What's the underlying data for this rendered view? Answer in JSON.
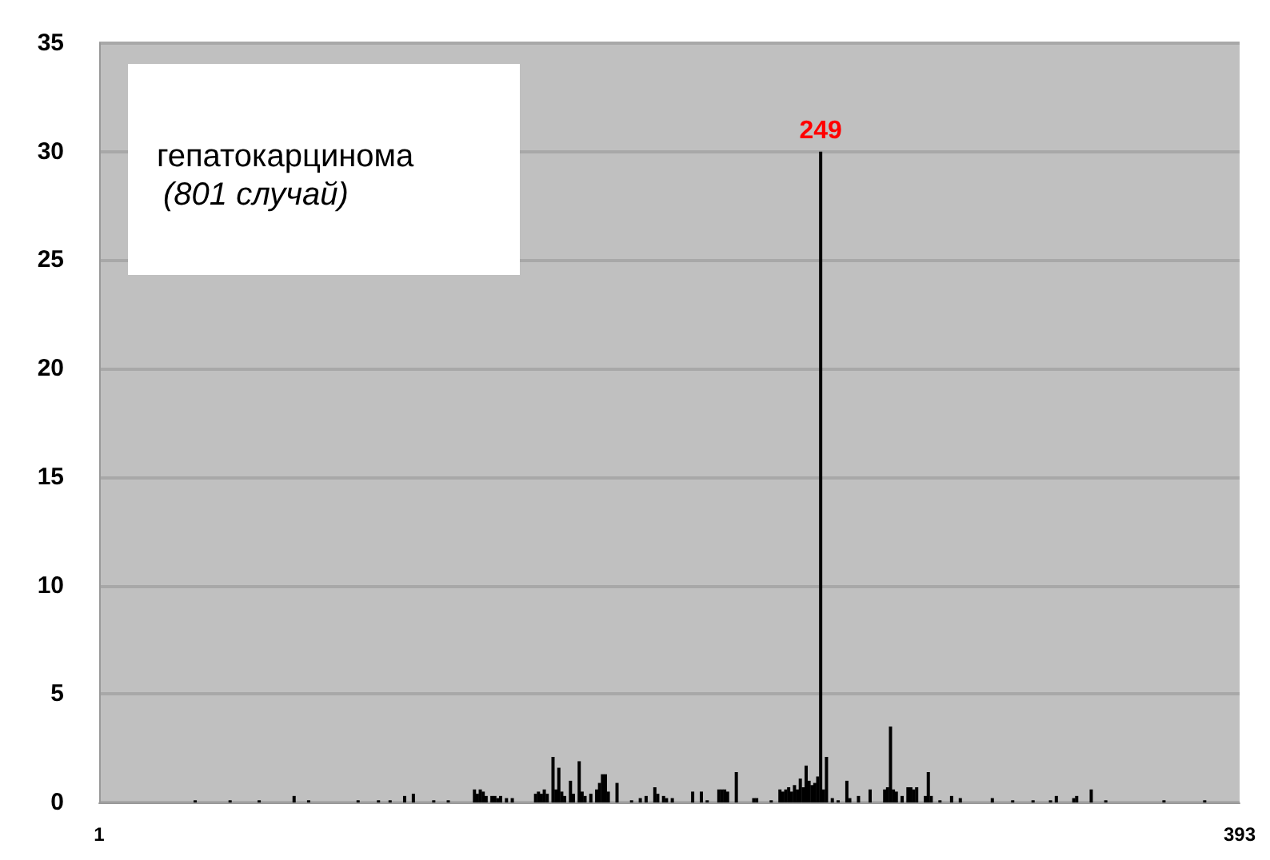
{
  "chart_data": {
    "type": "bar",
    "title": "гепатокарцинома",
    "subtitle": "(801 случай)",
    "x": [
      34,
      46,
      56,
      68,
      73,
      90,
      97,
      101,
      106,
      109,
      116,
      121,
      130,
      131,
      132,
      133,
      134,
      136,
      137,
      138,
      139,
      141,
      143,
      151,
      152,
      153,
      154,
      155,
      157,
      158,
      159,
      160,
      161,
      163,
      164,
      166,
      167,
      168,
      170,
      172,
      173,
      174,
      175,
      176,
      179,
      184,
      187,
      189,
      192,
      193,
      195,
      196,
      198,
      205,
      208,
      210,
      214,
      215,
      216,
      217,
      220,
      226,
      227,
      232,
      235,
      236,
      237,
      238,
      239,
      240,
      241,
      242,
      243,
      244,
      245,
      246,
      247,
      248,
      249,
      250,
      251,
      253,
      255,
      258,
      259,
      262,
      266,
      271,
      272,
      273,
      274,
      275,
      277,
      279,
      280,
      281,
      282,
      285,
      286,
      287,
      290,
      294,
      297,
      308,
      315,
      322,
      328,
      330,
      336,
      337,
      342,
      347,
      367,
      381
    ],
    "values": [
      0.1,
      0.1,
      0.1,
      0.3,
      0.1,
      0.1,
      0.1,
      0.1,
      0.3,
      0.4,
      0.1,
      0.1,
      0.6,
      0.4,
      0.6,
      0.5,
      0.3,
      0.3,
      0.3,
      0.2,
      0.3,
      0.2,
      0.2,
      0.4,
      0.5,
      0.4,
      0.6,
      0.4,
      2.1,
      0.6,
      1.6,
      0.5,
      0.3,
      1.0,
      0.4,
      1.9,
      0.5,
      0.3,
      0.4,
      0.6,
      0.9,
      1.3,
      1.3,
      0.5,
      0.9,
      0.1,
      0.2,
      0.3,
      0.7,
      0.4,
      0.3,
      0.2,
      0.2,
      0.5,
      0.5,
      0.1,
      0.6,
      0.6,
      0.6,
      0.5,
      1.4,
      0.2,
      0.2,
      0.1,
      0.6,
      0.5,
      0.6,
      0.7,
      0.5,
      0.8,
      0.6,
      1.1,
      0.7,
      1.7,
      1.0,
      0.8,
      0.9,
      1.2,
      30,
      0.6,
      2.1,
      0.2,
      0.1,
      1.0,
      0.2,
      0.3,
      0.6,
      0.6,
      0.7,
      3.5,
      0.6,
      0.5,
      0.3,
      0.7,
      0.7,
      0.6,
      0.7,
      0.3,
      1.4,
      0.3,
      0.1,
      0.3,
      0.2,
      0.2,
      0.1,
      0.1,
      0.1,
      0.3,
      0.2,
      0.3,
      0.6,
      0.1,
      0.1,
      0.1
    ],
    "color": "#000000",
    "annotations": [
      {
        "text": "249",
        "x": 249,
        "y": 30
      }
    ],
    "xlim": [
      1,
      393
    ],
    "xticks": [
      1,
      393
    ],
    "ylim": [
      0,
      35
    ],
    "yticks": [
      0,
      5,
      10,
      15,
      20,
      25,
      30,
      35
    ],
    "grid": "y"
  }
}
